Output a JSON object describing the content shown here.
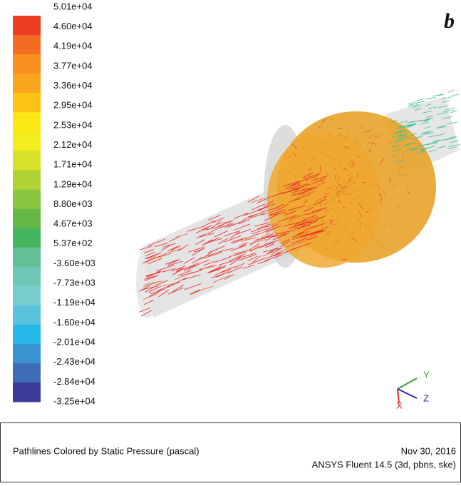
{
  "colorbar": {
    "labels": [
      "5.01e+04",
      "4.60e+04",
      "4.19e+04",
      "3.77e+04",
      "3.36e+04",
      "2.95e+04",
      "2.53e+04",
      "2.12e+04",
      "1.71e+04",
      "1.29e+04",
      "8.80e+03",
      "4.67e+03",
      "5.37e+02",
      "-3.60e+03",
      "-7.73e+03",
      "-1.19e+04",
      "-1.60e+04",
      "-2.01e+04",
      "-2.43e+04",
      "-2.84e+04",
      "-3.25e+04"
    ],
    "colors": [
      "#ee3b24",
      "#f36c21",
      "#f7901e",
      "#f9a61c",
      "#fcc314",
      "#fbe616",
      "#f3ec1e",
      "#d7e02a",
      "#b1d234",
      "#8cc63f",
      "#65b845",
      "#45b560",
      "#64bf96",
      "#71c7b7",
      "#7acdcf",
      "#5bc4dc",
      "#27b8ea",
      "#3a93d0",
      "#3f6db5",
      "#3b3c99"
    ]
  },
  "panel_label": "b",
  "axes_triad": {
    "y": "Y",
    "z": "Z",
    "x": "X"
  },
  "footer": {
    "title": "Pathlines Colored by Static Pressure (pascal)",
    "date": "Nov 30, 2016",
    "software": "ANSYS Fluent 14.5 (3d, pbns, ske)"
  }
}
